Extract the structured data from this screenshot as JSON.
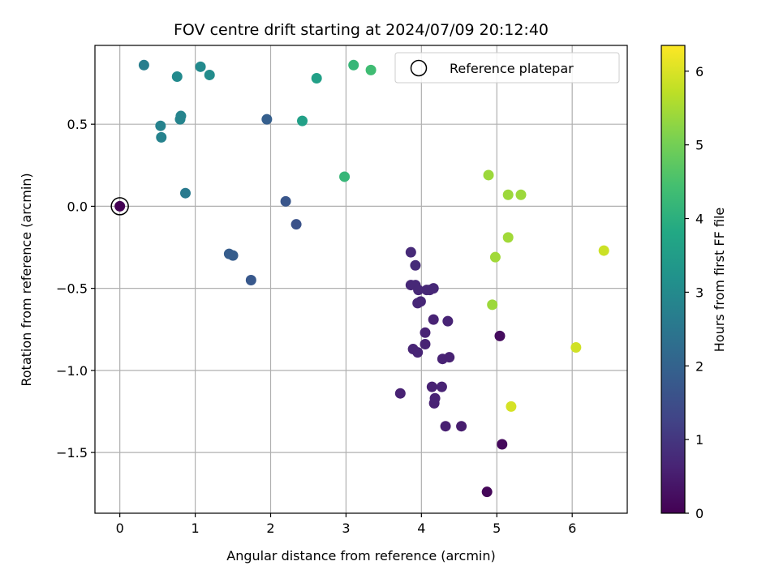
{
  "chart_data": {
    "type": "scatter",
    "title": "FOV centre drift starting at 2024/07/09 20:12:40",
    "xlabel": "Angular distance from reference (arcmin)",
    "ylabel": "Rotation from reference (arcmin)",
    "xlim": [
      -0.33,
      6.73
    ],
    "ylim": [
      -1.87,
      0.98
    ],
    "xticks": [
      0,
      1,
      2,
      3,
      4,
      5,
      6
    ],
    "xtick_labels": [
      "0",
      "1",
      "2",
      "3",
      "4",
      "5",
      "6"
    ],
    "yticks": [
      -1.5,
      -1.0,
      -0.5,
      0.0,
      0.5
    ],
    "ytick_labels": [
      "−1.5",
      "−1.0",
      "−0.5",
      "0.0",
      "0.5"
    ],
    "grid": true,
    "legend": {
      "position": "top-right",
      "entries": [
        "Reference platepar"
      ]
    },
    "colorbar": {
      "label": "Hours from first FF file",
      "range": [
        0,
        6.35
      ],
      "ticks": [
        0,
        1,
        2,
        3,
        4,
        5,
        6
      ],
      "tick_labels": [
        "0",
        "1",
        "2",
        "3",
        "4",
        "5",
        "6"
      ],
      "colormap": "viridis"
    },
    "reference_point": {
      "x": 0.0,
      "y": 0.0,
      "value": 0.0
    },
    "points": [
      {
        "x": 0.0,
        "y": 0.0,
        "value": 0.0
      },
      {
        "x": 4.87,
        "y": -1.74,
        "value": 0.1
      },
      {
        "x": 5.07,
        "y": -1.45,
        "value": 0.15
      },
      {
        "x": 5.04,
        "y": -0.79,
        "value": 0.2
      },
      {
        "x": 4.53,
        "y": -1.34,
        "value": 0.5
      },
      {
        "x": 4.32,
        "y": -1.34,
        "value": 0.55
      },
      {
        "x": 3.72,
        "y": -1.14,
        "value": 0.6
      },
      {
        "x": 4.17,
        "y": -1.2,
        "value": 0.6
      },
      {
        "x": 4.18,
        "y": -1.17,
        "value": 0.62
      },
      {
        "x": 4.14,
        "y": -1.1,
        "value": 0.6
      },
      {
        "x": 4.27,
        "y": -1.1,
        "value": 0.62
      },
      {
        "x": 4.28,
        "y": -0.93,
        "value": 0.62
      },
      {
        "x": 4.37,
        "y": -0.92,
        "value": 0.6
      },
      {
        "x": 3.89,
        "y": -0.87,
        "value": 0.65
      },
      {
        "x": 3.95,
        "y": -0.89,
        "value": 0.65
      },
      {
        "x": 4.05,
        "y": -0.84,
        "value": 0.62
      },
      {
        "x": 4.05,
        "y": -0.77,
        "value": 0.62
      },
      {
        "x": 4.16,
        "y": -0.69,
        "value": 0.62
      },
      {
        "x": 4.35,
        "y": -0.7,
        "value": 0.63
      },
      {
        "x": 3.95,
        "y": -0.59,
        "value": 0.7
      },
      {
        "x": 3.99,
        "y": -0.58,
        "value": 0.7
      },
      {
        "x": 3.86,
        "y": -0.48,
        "value": 0.72
      },
      {
        "x": 3.92,
        "y": -0.48,
        "value": 0.72
      },
      {
        "x": 3.96,
        "y": -0.51,
        "value": 0.72
      },
      {
        "x": 4.07,
        "y": -0.51,
        "value": 0.72
      },
      {
        "x": 4.11,
        "y": -0.51,
        "value": 0.72
      },
      {
        "x": 4.16,
        "y": -0.5,
        "value": 0.72
      },
      {
        "x": 3.86,
        "y": -0.28,
        "value": 0.75
      },
      {
        "x": 3.92,
        "y": -0.36,
        "value": 0.78
      },
      {
        "x": 2.34,
        "y": -0.11,
        "value": 1.6
      },
      {
        "x": 2.2,
        "y": 0.03,
        "value": 1.7
      },
      {
        "x": 1.74,
        "y": -0.45,
        "value": 1.75
      },
      {
        "x": 1.45,
        "y": -0.29,
        "value": 1.85
      },
      {
        "x": 1.5,
        "y": -0.3,
        "value": 1.85
      },
      {
        "x": 1.95,
        "y": 0.53,
        "value": 1.9
      },
      {
        "x": 0.87,
        "y": 0.08,
        "value": 2.6
      },
      {
        "x": 0.55,
        "y": 0.42,
        "value": 2.8
      },
      {
        "x": 0.54,
        "y": 0.49,
        "value": 2.8
      },
      {
        "x": 0.8,
        "y": 0.53,
        "value": 2.85
      },
      {
        "x": 0.81,
        "y": 0.55,
        "value": 2.85
      },
      {
        "x": 0.32,
        "y": 0.86,
        "value": 2.7
      },
      {
        "x": 0.76,
        "y": 0.79,
        "value": 3.0
      },
      {
        "x": 1.07,
        "y": 0.85,
        "value": 3.0
      },
      {
        "x": 1.19,
        "y": 0.8,
        "value": 3.05
      },
      {
        "x": 2.42,
        "y": 0.52,
        "value": 3.6
      },
      {
        "x": 2.61,
        "y": 0.78,
        "value": 3.6
      },
      {
        "x": 2.98,
        "y": 0.18,
        "value": 4.2
      },
      {
        "x": 3.1,
        "y": 0.86,
        "value": 4.2
      },
      {
        "x": 3.33,
        "y": 0.83,
        "value": 4.35
      },
      {
        "x": 4.89,
        "y": 0.19,
        "value": 5.4
      },
      {
        "x": 5.15,
        "y": 0.07,
        "value": 5.4
      },
      {
        "x": 5.32,
        "y": 0.07,
        "value": 5.4
      },
      {
        "x": 5.15,
        "y": -0.19,
        "value": 5.45
      },
      {
        "x": 4.98,
        "y": -0.31,
        "value": 5.45
      },
      {
        "x": 4.94,
        "y": -0.6,
        "value": 5.4
      },
      {
        "x": 6.42,
        "y": -0.27,
        "value": 5.85
      },
      {
        "x": 6.05,
        "y": -0.86,
        "value": 5.9
      },
      {
        "x": 5.19,
        "y": -1.22,
        "value": 5.95
      }
    ]
  }
}
